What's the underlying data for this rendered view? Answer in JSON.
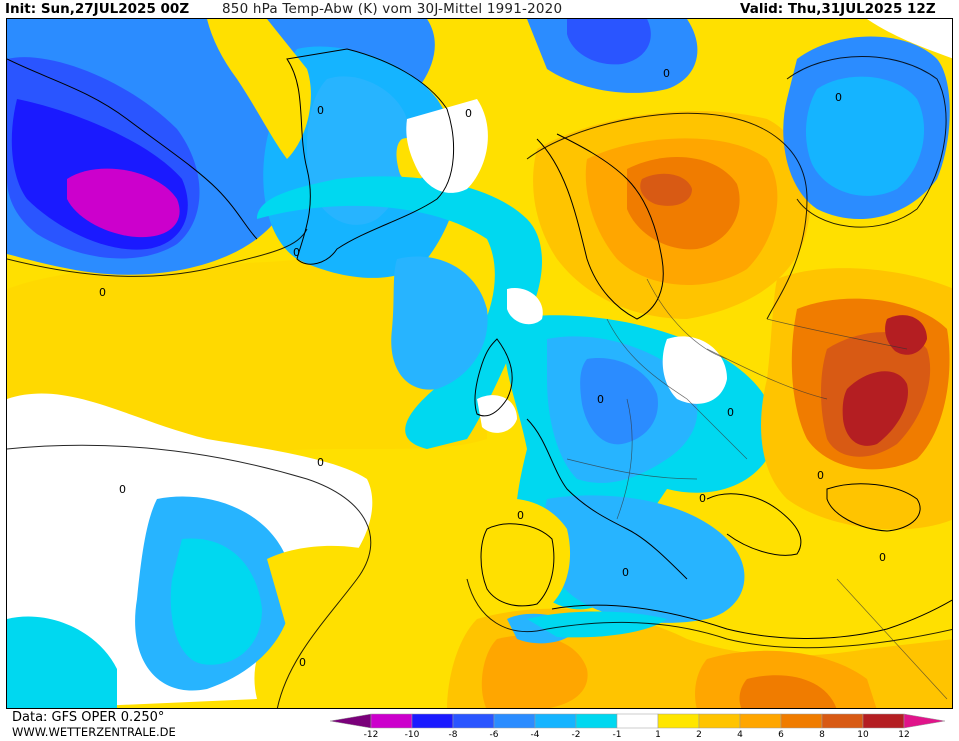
{
  "header": {
    "init": "Init: Sun,27JUL2025 00Z",
    "title": "850 hPa Temp-Abw (K) vom 30J-Mittel 1991-2020",
    "valid": "Valid: Thu,31JUL2025 12Z"
  },
  "footer": {
    "data_source": "Data: GFS OPER 0.250°",
    "website": "WWW.WETTERZENTRALE.DE"
  },
  "map": {
    "contour_labels": [
      "0",
      "0",
      "0",
      "0",
      "0",
      "0",
      "0",
      "0",
      "0",
      "0",
      "0",
      "0",
      "0",
      "0",
      "0",
      "0"
    ]
  },
  "legend": {
    "colors": [
      "#7a007a",
      "#cc00cc",
      "#1a1aff",
      "#2a55ff",
      "#2b8cff",
      "#15b4ff",
      "#00d8f0",
      "#ffffff",
      "#ffe600",
      "#ffc400",
      "#ffa600",
      "#f07c00",
      "#d85a14",
      "#b41e22",
      "#e0148a"
    ],
    "labels": [
      "-12",
      "-10",
      "-8",
      "-6",
      "-4",
      "-2",
      "-1",
      "1",
      "2",
      "4",
      "6",
      "8",
      "10",
      "12"
    ]
  }
}
